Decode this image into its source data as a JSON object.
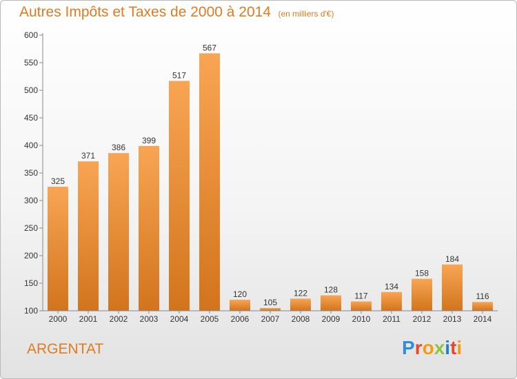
{
  "chart_data": {
    "type": "bar",
    "title": "Autres Impôts et Taxes de 2000 à 2014",
    "subtitle": "(en milliers d'€)",
    "categories": [
      "2000",
      "2001",
      "2002",
      "2003",
      "2004",
      "2005",
      "2006",
      "2007",
      "2008",
      "2009",
      "2010",
      "2011",
      "2012",
      "2013",
      "2014"
    ],
    "values": [
      325,
      371,
      386,
      399,
      517,
      567,
      120,
      105,
      122,
      128,
      117,
      134,
      158,
      184,
      116
    ],
    "ylim": [
      100,
      600
    ],
    "yticks": [
      100,
      150,
      200,
      250,
      300,
      350,
      400,
      450,
      500,
      550,
      600
    ],
    "xlabel": "",
    "ylabel": "",
    "grid": false,
    "bar_colors": {
      "light": "#f8a553",
      "dark": "#d2741d"
    },
    "axis_color": "#888888"
  },
  "footer": {
    "location": "ARGENTAT",
    "logo_text": "Proxiti",
    "logo_letter_colors": [
      "#2e8fd6",
      "#e8462b",
      "#f39c12",
      "#8cc63f",
      "#1f7fd0",
      "#e8462b",
      "#f39c12"
    ]
  }
}
